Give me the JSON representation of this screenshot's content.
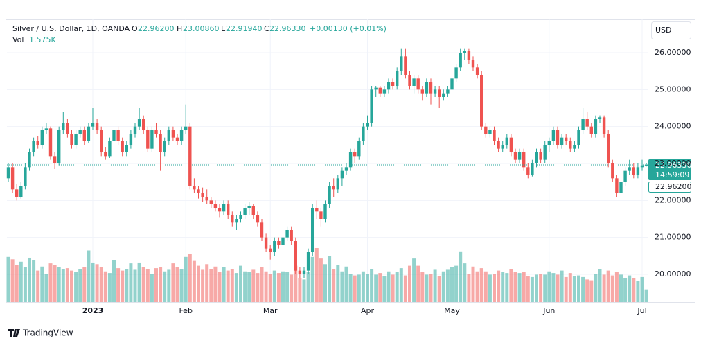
{
  "header": {
    "symbol": "Silver / U.S. Dollar, 1D, OANDA",
    "o_label": "O",
    "o": "22.96200",
    "h_label": "H",
    "h": "23.00860",
    "l_label": "L",
    "l": "22.91940",
    "c_label": "C",
    "c": "22.96330",
    "change": "+0.00130 (+0.01%)",
    "vol_label": "Vol",
    "vol": "1.575K"
  },
  "price_scale": {
    "currency": "USD",
    "last_price": "22.96330",
    "countdown": "14:59:09",
    "open_price": "22.96200"
  },
  "footer": {
    "brand": "TradingView"
  },
  "chart_data": {
    "type": "candlestick",
    "title": "Silver / U.S. Dollar, 1D, OANDA",
    "up_color": "#26a69a",
    "down_color": "#ef5350",
    "grid": true,
    "ylim": [
      19.25,
      26.9
    ],
    "yticks": [
      {
        "value": 20,
        "label": "20.00000"
      },
      {
        "value": 21,
        "label": "21.00000"
      },
      {
        "value": 22,
        "label": "22.00000"
      },
      {
        "value": 23,
        "label": "23.00000"
      },
      {
        "value": 24,
        "label": "24.00000"
      },
      {
        "value": 25,
        "label": "25.00000"
      },
      {
        "value": 26,
        "label": "26.00000"
      }
    ],
    "categories": [
      null,
      null,
      null,
      null,
      null,
      null,
      null,
      null,
      null,
      null,
      null,
      null,
      null,
      null,
      null,
      null,
      null,
      null,
      null,
      null,
      "2023",
      null,
      null,
      null,
      null,
      null,
      null,
      null,
      null,
      null,
      null,
      null,
      null,
      null,
      null,
      null,
      null,
      null,
      null,
      null,
      null,
      null,
      "Feb",
      null,
      null,
      null,
      null,
      null,
      null,
      null,
      null,
      null,
      null,
      null,
      null,
      null,
      null,
      null,
      null,
      null,
      null,
      null,
      "Mar",
      null,
      null,
      null,
      null,
      null,
      null,
      null,
      null,
      null,
      null,
      null,
      null,
      null,
      null,
      null,
      null,
      null,
      null,
      null,
      null,
      null,
      null,
      "Apr",
      null,
      null,
      null,
      null,
      null,
      null,
      null,
      null,
      null,
      null,
      null,
      null,
      null,
      null,
      null,
      null,
      null,
      null,
      null,
      "May",
      null,
      null,
      null,
      null,
      null,
      null,
      null,
      null,
      null,
      null,
      null,
      null,
      null,
      null,
      null,
      null,
      null,
      null,
      null,
      null,
      null,
      null,
      "Jun",
      null,
      null,
      null,
      null,
      null,
      null,
      null,
      null,
      null,
      null,
      null,
      null,
      null,
      null,
      null,
      null,
      null,
      null,
      null,
      null,
      null,
      "Jul",
      null
    ],
    "open": [
      22.6,
      22.9,
      22.3,
      22.1,
      22.4,
      22.9,
      23.3,
      23.6,
      23.5,
      23.9,
      23.95,
      23.2,
      23.0,
      23.9,
      24.1,
      23.8,
      23.5,
      23.8,
      23.9,
      23.6,
      24.0,
      24.1,
      23.9,
      23.3,
      23.2,
      23.6,
      23.9,
      23.6,
      23.3,
      23.5,
      23.8,
      24.0,
      24.2,
      23.9,
      23.4,
      23.9,
      23.8,
      23.3,
      23.6,
      23.9,
      23.7,
      23.6,
      23.9,
      24.0,
      22.4,
      22.3,
      22.2,
      22.1,
      22.0,
      21.9,
      21.8,
      21.7,
      21.9,
      21.6,
      21.4,
      21.5,
      21.6,
      21.8,
      21.85,
      21.6,
      21.4,
      21.0,
      20.7,
      20.6,
      20.9,
      20.8,
      21.0,
      21.2,
      20.9,
      20.1,
      20.0,
      20.1,
      20.6,
      21.8,
      21.7,
      21.5,
      21.9,
      22.4,
      22.3,
      22.6,
      22.8,
      22.9,
      23.3,
      23.2,
      23.6,
      24.0,
      24.1,
      25.0,
      25.05,
      24.9,
      25.0,
      25.2,
      25.1,
      25.5,
      25.9,
      25.4,
      25.1,
      25.3,
      25.0,
      24.9,
      25.2,
      24.9,
      25.0,
      24.8,
      24.9,
      25.0,
      25.3,
      25.6,
      26.0,
      26.05,
      25.8,
      25.6,
      25.4,
      24.0,
      23.8,
      23.9,
      23.6,
      23.4,
      23.5,
      23.7,
      23.3,
      23.1,
      23.3,
      22.9,
      22.7,
      23.0,
      23.3,
      23.1,
      23.5,
      23.6,
      23.9,
      23.5,
      23.7,
      23.6,
      23.4,
      23.5,
      23.9,
      24.2,
      24.0,
      23.8,
      24.2,
      24.25,
      23.8,
      23.0,
      22.6,
      22.2,
      22.5,
      22.8,
      22.9,
      22.7,
      22.9,
      22.962
    ],
    "high": [
      23.0,
      23.0,
      22.45,
      22.5,
      23.0,
      23.4,
      23.7,
      23.75,
      24.0,
      24.1,
      24.0,
      23.3,
      24.0,
      24.4,
      24.2,
      23.9,
      23.9,
      24.0,
      24.0,
      24.1,
      24.5,
      24.2,
      24.0,
      23.45,
      23.7,
      24.0,
      24.0,
      23.7,
      23.6,
      23.9,
      24.1,
      24.5,
      24.3,
      24.0,
      24.0,
      24.1,
      23.9,
      23.7,
      24.0,
      24.0,
      23.8,
      24.0,
      24.6,
      24.1,
      22.6,
      22.4,
      22.35,
      22.3,
      22.1,
      22.0,
      21.9,
      22.0,
      22.0,
      21.7,
      21.6,
      21.7,
      21.9,
      21.95,
      21.9,
      21.7,
      21.5,
      21.1,
      20.8,
      21.0,
      21.0,
      21.1,
      21.3,
      21.3,
      21.0,
      20.2,
      20.2,
      20.7,
      21.9,
      22.0,
      21.8,
      22.0,
      22.5,
      22.6,
      22.7,
      22.9,
      23.0,
      23.4,
      23.4,
      23.7,
      24.1,
      24.3,
      25.1,
      25.1,
      25.1,
      25.1,
      25.3,
      25.3,
      25.6,
      26.1,
      26.1,
      25.5,
      25.4,
      25.4,
      25.1,
      25.3,
      25.3,
      25.1,
      25.1,
      25.0,
      25.1,
      25.4,
      25.7,
      26.1,
      26.1,
      26.1,
      25.9,
      25.7,
      25.5,
      24.1,
      24.0,
      24.0,
      23.7,
      23.6,
      23.8,
      23.8,
      23.4,
      23.4,
      23.4,
      23.0,
      23.1,
      23.4,
      23.4,
      23.6,
      23.7,
      24.0,
      24.0,
      23.8,
      23.8,
      23.7,
      23.6,
      24.0,
      24.5,
      24.4,
      24.1,
      24.3,
      24.3,
      24.3,
      23.9,
      23.1,
      22.7,
      22.6,
      22.9,
      23.1,
      23.0,
      23.0,
      23.1,
      23.0086
    ],
    "low": [
      22.5,
      22.2,
      22.0,
      22.05,
      22.3,
      22.8,
      23.2,
      23.4,
      23.4,
      23.8,
      23.1,
      22.85,
      22.95,
      23.8,
      23.7,
      23.4,
      23.4,
      23.7,
      23.5,
      23.55,
      23.9,
      23.8,
      23.2,
      23.1,
      23.15,
      23.5,
      23.5,
      23.2,
      23.2,
      23.4,
      23.7,
      23.9,
      23.8,
      23.3,
      23.3,
      23.7,
      22.8,
      23.2,
      23.5,
      23.6,
      23.5,
      23.5,
      23.8,
      22.3,
      22.2,
      22.05,
      21.95,
      21.9,
      21.8,
      21.7,
      21.55,
      21.6,
      21.5,
      21.3,
      21.2,
      21.4,
      21.5,
      21.6,
      21.5,
      21.3,
      20.9,
      20.6,
      20.4,
      20.5,
      20.7,
      20.7,
      20.9,
      20.8,
      20.0,
      19.9,
      19.9,
      20.0,
      20.5,
      21.5,
      21.3,
      21.4,
      21.8,
      22.1,
      22.2,
      22.4,
      22.7,
      22.8,
      23.0,
      23.1,
      23.5,
      23.9,
      24.0,
      24.8,
      24.8,
      24.8,
      24.9,
      25.0,
      25.0,
      25.4,
      25.3,
      25.0,
      24.9,
      24.9,
      24.7,
      24.8,
      24.6,
      24.8,
      24.5,
      24.7,
      24.8,
      24.9,
      25.2,
      25.5,
      25.8,
      25.7,
      25.5,
      25.3,
      23.9,
      23.7,
      23.7,
      23.5,
      23.3,
      23.3,
      23.4,
      23.2,
      23.0,
      23.0,
      22.8,
      22.6,
      22.65,
      22.9,
      23.0,
      23.0,
      23.3,
      23.5,
      23.4,
      23.4,
      23.5,
      23.3,
      23.3,
      23.4,
      23.8,
      23.9,
      23.7,
      23.7,
      24.1,
      23.7,
      22.9,
      22.5,
      22.1,
      22.1,
      22.4,
      22.7,
      22.6,
      22.6,
      22.8,
      22.9194
    ],
    "close": [
      22.9,
      22.3,
      22.1,
      22.4,
      22.9,
      23.3,
      23.6,
      23.5,
      23.9,
      23.95,
      23.2,
      23.0,
      23.9,
      24.1,
      23.8,
      23.5,
      23.8,
      23.9,
      23.6,
      24.0,
      24.1,
      23.9,
      23.3,
      23.2,
      23.6,
      23.9,
      23.6,
      23.3,
      23.5,
      23.8,
      24.0,
      24.2,
      23.9,
      23.4,
      23.9,
      23.8,
      23.3,
      23.6,
      23.9,
      23.7,
      23.6,
      23.9,
      24.0,
      22.4,
      22.3,
      22.2,
      22.1,
      22.0,
      21.9,
      21.8,
      21.7,
      21.9,
      21.6,
      21.4,
      21.5,
      21.6,
      21.8,
      21.85,
      21.6,
      21.4,
      21.0,
      20.7,
      20.6,
      20.9,
      20.8,
      21.0,
      21.2,
      20.9,
      20.1,
      20.0,
      20.1,
      20.6,
      21.8,
      21.7,
      21.5,
      21.9,
      22.4,
      22.3,
      22.6,
      22.8,
      22.9,
      23.3,
      23.2,
      23.6,
      24.0,
      24.1,
      25.0,
      25.05,
      24.9,
      25.0,
      25.2,
      25.1,
      25.5,
      25.9,
      25.4,
      25.1,
      25.3,
      25.0,
      24.9,
      25.2,
      24.9,
      25.0,
      24.8,
      24.9,
      25.0,
      25.3,
      25.6,
      26.0,
      26.05,
      25.8,
      25.6,
      25.4,
      24.0,
      23.8,
      23.9,
      23.6,
      23.4,
      23.5,
      23.7,
      23.3,
      23.1,
      23.3,
      22.9,
      22.7,
      23.0,
      23.3,
      23.1,
      23.5,
      23.6,
      23.9,
      23.5,
      23.7,
      23.6,
      23.4,
      23.5,
      23.9,
      24.2,
      24.0,
      23.8,
      24.2,
      24.25,
      23.8,
      23.0,
      22.6,
      22.2,
      22.5,
      22.8,
      22.9,
      22.7,
      22.9,
      22.95,
      22.9633
    ],
    "volume": [
      5600,
      5300,
      4600,
      5000,
      4300,
      5500,
      5200,
      3900,
      4400,
      3500,
      4800,
      4600,
      4300,
      4100,
      4200,
      3900,
      3700,
      4100,
      4300,
      6400,
      4900,
      4700,
      4300,
      3800,
      3600,
      5200,
      4200,
      3900,
      4100,
      4800,
      4000,
      4900,
      4300,
      4100,
      3500,
      4200,
      4300,
      3800,
      4000,
      4800,
      4300,
      4100,
      5600,
      6000,
      5100,
      4500,
      4000,
      4700,
      4100,
      4400,
      3700,
      4300,
      3900,
      4100,
      3600,
      4500,
      3800,
      3700,
      4000,
      3600,
      4300,
      3800,
      3500,
      3900,
      3600,
      3800,
      3700,
      3400,
      4500,
      3000,
      2800,
      3700,
      5600,
      6700,
      5400,
      4700,
      5700,
      4100,
      4600,
      3800,
      4400,
      3500,
      3300,
      3400,
      3800,
      3500,
      4100,
      3400,
      3600,
      3200,
      3800,
      3400,
      3700,
      4200,
      3300,
      4500,
      5400,
      4500,
      3700,
      3400,
      3500,
      4000,
      3200,
      3800,
      4000,
      4300,
      4500,
      6200,
      4800,
      3500,
      4400,
      3800,
      4200,
      3800,
      3400,
      3500,
      3900,
      3700,
      3600,
      4100,
      3700,
      3600,
      3700,
      3200,
      3100,
      3400,
      3500,
      3400,
      3800,
      3600,
      3400,
      3900,
      3100,
      3600,
      3200,
      3300,
      3100,
      2800,
      2700,
      3500,
      4100,
      3400,
      3900,
      3300,
      3700,
      3400,
      3000,
      3300,
      3000,
      2600,
      3100,
      1575
    ]
  }
}
